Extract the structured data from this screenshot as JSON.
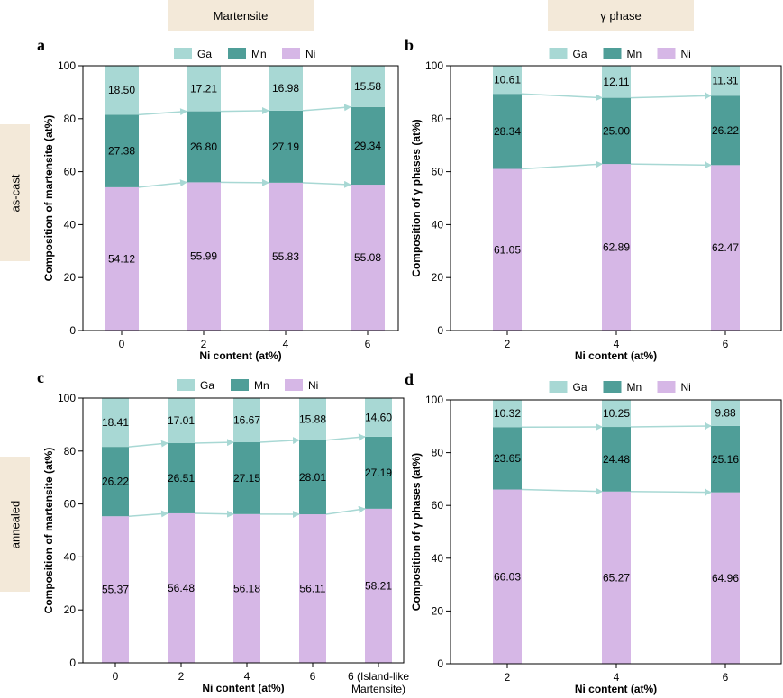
{
  "headers": {
    "left": "Martensite",
    "right": "γ phase"
  },
  "rows": {
    "top": "as-cast",
    "bottom": "annealed"
  },
  "colors": {
    "Ga": "#a8d8d4",
    "Mn": "#4f9e98",
    "Ni": "#d6b7e6",
    "arrow": "#a8d8d4"
  },
  "chart_data": [
    {
      "panel": "a",
      "type": "bar",
      "stacked": true,
      "xlabel": "Ni content (at%)",
      "ylabel": "Composition of martensite (at%)",
      "ylim": [
        0,
        100
      ],
      "yticks": [
        0,
        20,
        40,
        60,
        80,
        100
      ],
      "categories": [
        "0",
        "2",
        "4",
        "6"
      ],
      "legend": [
        "Ga",
        "Mn",
        "Ni"
      ],
      "legend_position": "top",
      "series": [
        {
          "name": "Ni",
          "values": [
            54.12,
            55.99,
            55.83,
            55.08
          ]
        },
        {
          "name": "Mn",
          "values": [
            27.38,
            26.8,
            27.19,
            29.34
          ]
        },
        {
          "name": "Ga",
          "values": [
            18.5,
            17.21,
            16.98,
            15.58
          ]
        }
      ],
      "labels": {
        "Ni": [
          "54.12",
          "55.99",
          "55.83",
          "55.08"
        ],
        "Mn": [
          "27.38",
          "26.80",
          "27.19",
          "29.34"
        ],
        "Ga": [
          "18.50",
          "17.21",
          "16.98",
          "15.58"
        ]
      }
    },
    {
      "panel": "b",
      "type": "bar",
      "stacked": true,
      "xlabel": "Ni content (at%)",
      "ylabel": "Composition of γ phases (at%)",
      "ylim": [
        0,
        100
      ],
      "yticks": [
        0,
        20,
        40,
        60,
        80,
        100
      ],
      "categories": [
        "2",
        "4",
        "6"
      ],
      "legend": [
        "Ga",
        "Mn",
        "Ni"
      ],
      "legend_position": "top",
      "series": [
        {
          "name": "Ni",
          "values": [
            61.05,
            62.89,
            62.47
          ]
        },
        {
          "name": "Mn",
          "values": [
            28.34,
            25.0,
            26.22
          ]
        },
        {
          "name": "Ga",
          "values": [
            10.61,
            12.11,
            11.31
          ]
        }
      ],
      "labels": {
        "Ni": [
          "61.05",
          "62.89",
          "62.47"
        ],
        "Mn": [
          "28.34",
          "25.00",
          "26.22"
        ],
        "Ga": [
          "10.61",
          "12.11",
          "11.31"
        ]
      }
    },
    {
      "panel": "c",
      "type": "bar",
      "stacked": true,
      "xlabel": "Ni content (at%)",
      "ylabel": "Composition of martensite (at%)",
      "ylim": [
        0,
        100
      ],
      "yticks": [
        0,
        20,
        40,
        60,
        80,
        100
      ],
      "categories": [
        "0",
        "2",
        "4",
        "6",
        "6 (Island-like Martensite)"
      ],
      "category_lines": [
        [
          "0"
        ],
        [
          "2"
        ],
        [
          "4"
        ],
        [
          "6"
        ],
        [
          "6 (Island-like",
          "Martensite)"
        ]
      ],
      "legend": [
        "Ga",
        "Mn",
        "Ni"
      ],
      "legend_position": "top",
      "series": [
        {
          "name": "Ni",
          "values": [
            55.37,
            56.48,
            56.18,
            56.11,
            58.21
          ]
        },
        {
          "name": "Mn",
          "values": [
            26.22,
            26.51,
            27.15,
            28.01,
            27.19
          ]
        },
        {
          "name": "Ga",
          "values": [
            18.41,
            17.01,
            16.67,
            15.88,
            14.6
          ]
        }
      ],
      "labels": {
        "Ni": [
          "55.37",
          "56.48",
          "56.18",
          "56.11",
          "58.21"
        ],
        "Mn": [
          "26.22",
          "26.51",
          "27.15",
          "28.01",
          "27.19"
        ],
        "Ga": [
          "18.41",
          "17.01",
          "16.67",
          "15.88",
          "14.60"
        ]
      }
    },
    {
      "panel": "d",
      "type": "bar",
      "stacked": true,
      "xlabel": "Ni content (at%)",
      "ylabel": "Composition of γ phases (at%)",
      "ylim": [
        0,
        100
      ],
      "yticks": [
        0,
        20,
        40,
        60,
        80,
        100
      ],
      "categories": [
        "2",
        "4",
        "6"
      ],
      "legend": [
        "Ga",
        "Mn",
        "Ni"
      ],
      "legend_position": "top",
      "series": [
        {
          "name": "Ni",
          "values": [
            66.03,
            65.27,
            64.96
          ]
        },
        {
          "name": "Mn",
          "values": [
            23.65,
            24.48,
            25.16
          ]
        },
        {
          "name": "Ga",
          "values": [
            10.32,
            10.25,
            9.88
          ]
        }
      ],
      "labels": {
        "Ni": [
          "66.03",
          "65.27",
          "64.96"
        ],
        "Mn": [
          "23.65",
          "24.48",
          "25.16"
        ],
        "Ga": [
          "10.32",
          "10.25",
          "9.88"
        ]
      }
    }
  ]
}
